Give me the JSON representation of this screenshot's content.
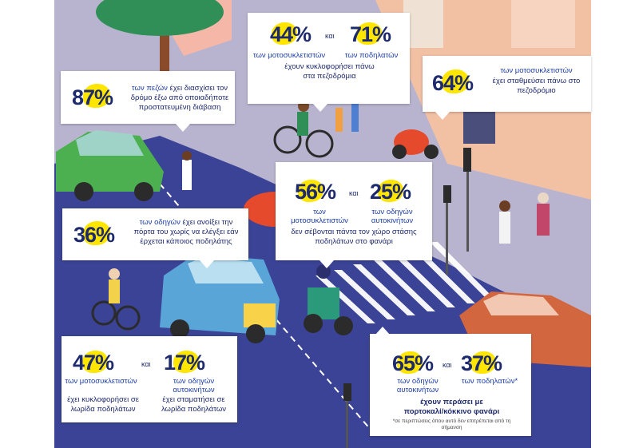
{
  "colors": {
    "road": "#3b4396",
    "sidewalk": "#b7b3cf",
    "highlight": "#ffe600",
    "ink": "#1e2a6e",
    "accent_blue": "#1e3fa8"
  },
  "callouts": {
    "c1": {
      "pct1": "44%",
      "and": "και",
      "pct2": "71%",
      "label1": "των μοτοσυκλετιστών",
      "label2": "των ποδηλατών",
      "text": "έχουν κυκλοφορήσει πάνω στα πεζοδρόμια"
    },
    "c2": {
      "pct": "87%",
      "label": "των πεζών",
      "text": "έχει διασχίσει τον δρόμο έξω από οποιαδήποτε προστατευμένη διάβαση"
    },
    "c3": {
      "pct": "64%",
      "label": "των μοτοσυκλετιστών",
      "text": "έχει σταθμεύσει πάνω στο πεζοδρόμιο"
    },
    "c4": {
      "pct1": "56%",
      "and": "και",
      "pct2": "25%",
      "label1": "των μοτοσυκλετιστών",
      "label2": "των οδηγών αυτοκινήτων",
      "text": "δεν σέβονται πάντα τον χώρο στάσης ποδηλάτων στο φανάρι"
    },
    "c5": {
      "pct": "36%",
      "label": "των οδηγών",
      "text": "έχει ανοίξει την πόρτα του χωρίς να ελέγξει εάν έρχεται κάποιος ποδηλάτης"
    },
    "c6": {
      "pct1": "47%",
      "and": "και",
      "pct2": "17%",
      "label1": "των μοτοσυκλετιστών",
      "label2": "των οδηγών αυτοκινήτων",
      "text1": "έχει κυκλοφορήσει σε λωρίδα ποδηλάτων",
      "text2": "έχει σταματήσει σε λωρίδα ποδηλάτων"
    },
    "c7": {
      "pct1": "65%",
      "and": "και",
      "pct2": "37%",
      "label1": "των οδηγών αυτοκινήτων",
      "label2": "των ποδηλατών*",
      "text": "έχουν περάσει με πορτοκαλί/κόκκινο φανάρι",
      "note": "*σε περιπτώσεις όπου αυτό δεν επιτρέπεται από τη σήμανση"
    }
  }
}
